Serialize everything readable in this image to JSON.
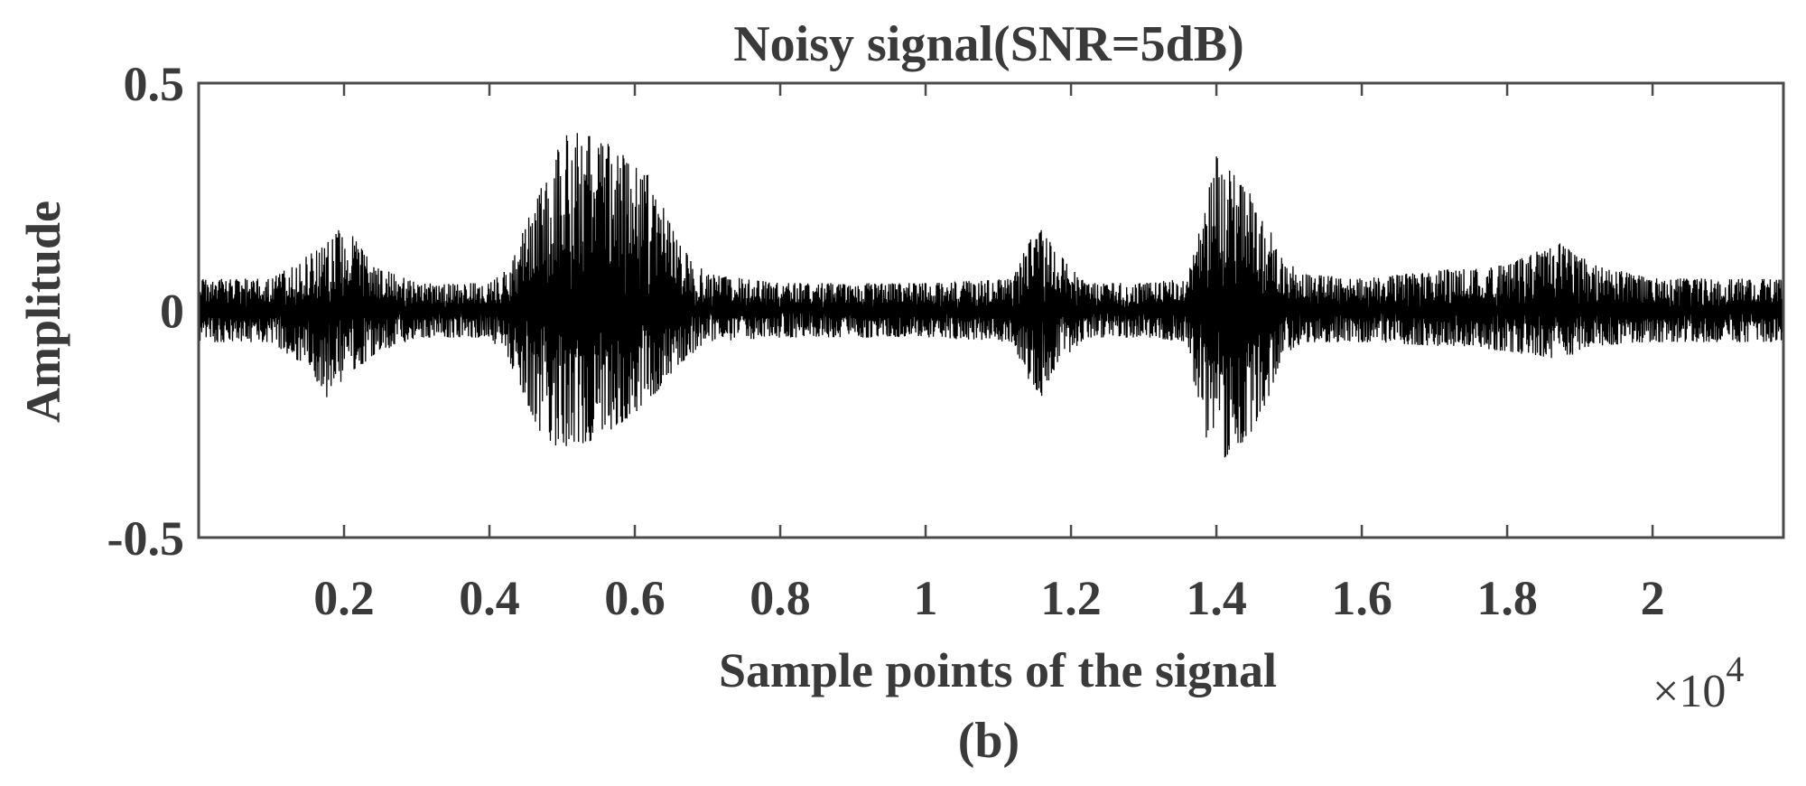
{
  "chart_data": {
    "type": "line",
    "title": "Noisy signal(SNR=5dB)",
    "xlabel": "Sample points of the signal",
    "ylabel": "Amplitude",
    "x_exponent_label": "×10",
    "x_exponent": "4",
    "caption": "(b)",
    "xlim": [
      0,
      21800
    ],
    "ylim": [
      -0.5,
      0.5
    ],
    "x_ticks": [
      2000,
      4000,
      6000,
      8000,
      10000,
      12000,
      14000,
      16000,
      18000,
      20000
    ],
    "x_tick_labels": [
      "0.2",
      "0.4",
      "0.6",
      "0.8",
      "1",
      "1.2",
      "1.4",
      "1.6",
      "1.8",
      "2"
    ],
    "y_ticks": [
      -0.5,
      0,
      0.5
    ],
    "y_tick_labels": [
      "-0.5",
      "0",
      "0.5"
    ],
    "grid": false,
    "line_color": "#000000",
    "series": [
      {
        "envelope": {
          "x": [
            0,
            1000,
            1500,
            1800,
            2000,
            2400,
            3000,
            4000,
            4300,
            4500,
            4800,
            5000,
            5200,
            5500,
            5800,
            6200,
            6600,
            7000,
            8000,
            10000,
            11200,
            11400,
            11600,
            11800,
            12200,
            13000,
            13600,
            13800,
            14000,
            14300,
            14600,
            14900,
            15200,
            16000,
            17200,
            18000,
            18700,
            19200,
            20000,
            21800
          ],
          "upper": [
            0.07,
            0.07,
            0.12,
            0.16,
            0.19,
            0.1,
            0.06,
            0.06,
            0.1,
            0.2,
            0.3,
            0.38,
            0.4,
            0.38,
            0.35,
            0.3,
            0.15,
            0.08,
            0.06,
            0.06,
            0.07,
            0.15,
            0.18,
            0.13,
            0.06,
            0.06,
            0.07,
            0.2,
            0.34,
            0.29,
            0.23,
            0.12,
            0.08,
            0.07,
            0.09,
            0.1,
            0.15,
            0.1,
            0.07,
            0.07
          ],
          "lower": [
            -0.07,
            -0.07,
            -0.13,
            -0.2,
            -0.15,
            -0.1,
            -0.06,
            -0.06,
            -0.12,
            -0.22,
            -0.3,
            -0.3,
            -0.3,
            -0.28,
            -0.25,
            -0.2,
            -0.12,
            -0.07,
            -0.06,
            -0.06,
            -0.07,
            -0.15,
            -0.19,
            -0.12,
            -0.06,
            -0.06,
            -0.07,
            -0.26,
            -0.34,
            -0.3,
            -0.25,
            -0.1,
            -0.07,
            -0.07,
            -0.08,
            -0.09,
            -0.11,
            -0.08,
            -0.07,
            -0.07
          ]
        }
      }
    ]
  }
}
